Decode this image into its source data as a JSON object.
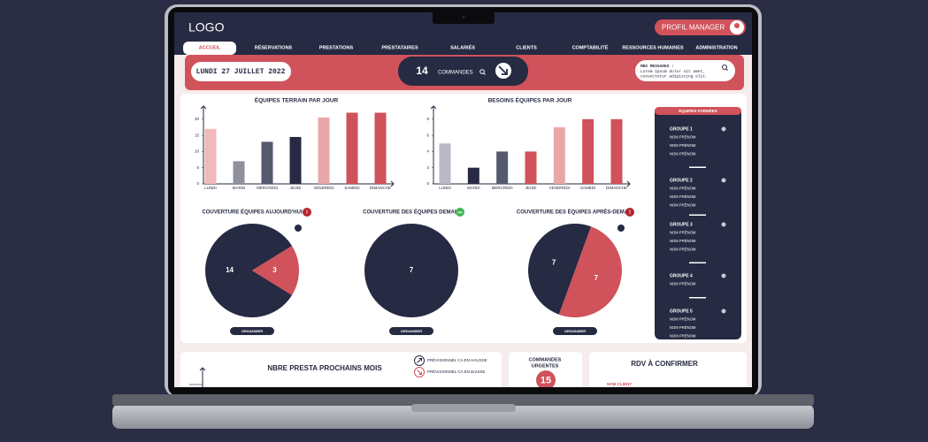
{
  "header": {
    "logo": "LOGO",
    "profile": "PROFIL MANAGER"
  },
  "nav": [
    "ACCUEIL",
    "RÉSERVATIONS",
    "PRESTATIONS",
    "PRESTATAIRES",
    "SALARIÉS",
    "CLIENTS",
    "COMPTABILITÉ",
    "RESSOURCES HUMAINES",
    "ADMINISTRATION"
  ],
  "banner": {
    "date": "LUNDI 27 JUILLET 2022",
    "orders_count": 14,
    "orders_label": "COMMANDES",
    "messages_title": "MES MESSAGES :",
    "messages_text": [
      "Lorem ipsum dolor sit amet,",
      "consectetur adipiscing elit."
    ]
  },
  "charts": [
    {
      "type": "bar",
      "title": "ÉQUIPES TERRAIN PAR JOUR",
      "categories": [
        "LUNDI",
        "MARDI",
        "MERCREDI",
        "JEUDI",
        "VENDREDI",
        "SAMEDI",
        "DIMANCHE"
      ],
      "values": [
        17,
        7,
        13,
        14.5,
        20.5,
        22,
        22
      ],
      "colors": [
        "#f0b9ba",
        "#8e909d",
        "#555a6e",
        "#262a42",
        "#e9a7a9",
        "#d0525a",
        "#d0525a"
      ],
      "ylim": [
        0,
        23.5
      ],
      "yticks": [
        0,
        5,
        10,
        15,
        20
      ]
    },
    {
      "type": "bar",
      "title": "BESOINS ÉQUIPES PAR JOUR",
      "categories": [
        "LUNDI",
        "MARDI",
        "MERCREDI",
        "JEUDI",
        "VENDREDI",
        "SAMEDI",
        "DIMANCHE"
      ],
      "values": [
        5,
        2,
        4,
        4,
        7,
        8,
        8
      ],
      "colors": [
        "#b9bac6",
        "#262a42",
        "#555a6e",
        "#d0525a",
        "#e9a7a9",
        "#d0525a",
        "#d0525a"
      ],
      "ylim": [
        0,
        9.4
      ],
      "yticks": [
        0,
        2,
        4,
        6,
        8
      ]
    }
  ],
  "pies": [
    {
      "type": "pie",
      "title": "COUVERTURE ÉQUIPES AUJOURD'HUI",
      "badge": "!",
      "values": [
        14,
        3
      ],
      "colors": [
        "#262a42",
        "#d0525a"
      ],
      "button": "ORGANISER"
    },
    {
      "type": "pie",
      "title": "COUVERTURE DES ÉQUIPES DEMAIN",
      "badge": "OK",
      "values": [
        7
      ],
      "colors": [
        "#262a42"
      ],
      "button": "ORGANISER"
    },
    {
      "type": "pie",
      "title": "COUVERTURE DES ÉQUIPES APRÈS-DEMAIN",
      "badge": "!",
      "values": [
        7,
        7
      ],
      "colors": [
        "#262a42",
        "#d0525a"
      ],
      "button": "ORGANISER"
    }
  ],
  "teams": {
    "title": "ÉQUIPES FORMÉES",
    "groups": [
      {
        "name": "GROUPE 1",
        "members": [
          "NOM PRÉNOM",
          "NOM PRÉNOM",
          "NOM PRÉNOM"
        ]
      },
      {
        "name": "GROUPE 2",
        "members": [
          "NOM PRÉNOM",
          "NOM PRÉNOM",
          "NOM PRÉNOM"
        ]
      },
      {
        "name": "GROUPE 3",
        "members": [
          "NOM PRÉNOM",
          "NOM PRÉNOM",
          "NOM PRÉNOM"
        ]
      },
      {
        "name": "GROUPE 4",
        "members": [
          "NOM PRÉNOM"
        ]
      },
      {
        "name": "GROUPE 5",
        "members": [
          "NOM PRÉNOM",
          "NOM PRÉNOM",
          "NOM PRÉNOM"
        ]
      }
    ]
  },
  "bottom": {
    "presta_title": "NBRE PRESTA PROCHAINS MOIS",
    "legend": [
      "PRÉVISIONNEL CA EN HAUSSE",
      "PRÉVISIONNEL CA EN BAISSE"
    ],
    "urgent_title": [
      "COMMANDES",
      "URGENTES"
    ],
    "urgent_count": 15,
    "rdv_title": "RDV À CONFIRMER",
    "rdv_client": "NOM CLIENT"
  }
}
